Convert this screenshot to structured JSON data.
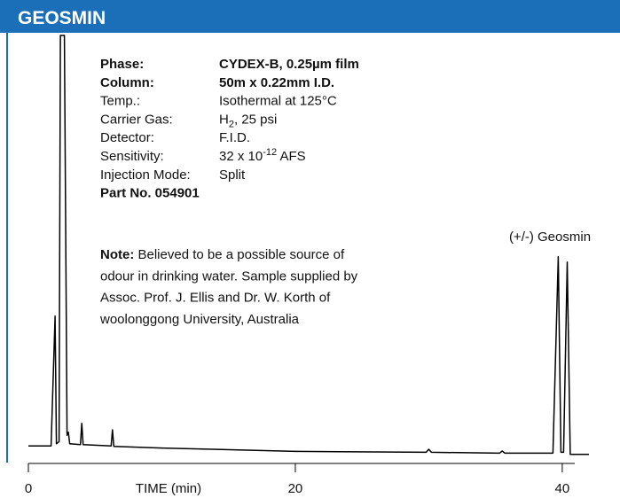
{
  "header": {
    "title": "GEOSMIN"
  },
  "chart_data": {
    "type": "line",
    "x_label": "TIME (min)",
    "xlim": [
      0,
      42
    ],
    "xticks": [
      0,
      20,
      40
    ],
    "ylim": [
      0,
      100
    ],
    "color": "#000000",
    "annotation": "(+/-) Geosmin",
    "series": [
      {
        "name": "Geosmin trace",
        "color": "#000000",
        "x": [
          0,
          1.7,
          2.0,
          2.1,
          2.3,
          2.4,
          2.7,
          2.9,
          3.0,
          3.1,
          3.9,
          4.0,
          4.1,
          6.2,
          6.3,
          6.4,
          10,
          20,
          29.8,
          30,
          30.2,
          35.3,
          35.5,
          35.7,
          39.3,
          39.7,
          39.9,
          40.1,
          40.37,
          40.6,
          42
        ],
        "values": [
          3.5,
          3.5,
          34,
          4,
          4.5,
          100,
          100,
          6,
          6.7,
          4,
          3.8,
          8.8,
          3.8,
          3.5,
          7.3,
          3.4,
          3,
          2.2,
          2,
          2.7,
          2,
          1.8,
          2.3,
          1.8,
          1.8,
          48,
          2,
          2,
          46.7,
          1.5,
          1.5
        ]
      }
    ]
  },
  "info": {
    "rows": [
      {
        "label": "Phase:",
        "value": "CYDEX-B, 0.25µm film",
        "bold": true
      },
      {
        "label": "Column:",
        "value": "50m x 0.22mm I.D.",
        "bold": true
      },
      {
        "label": "Temp.:",
        "value": "Isothermal at 125°C"
      },
      {
        "label": "Carrier Gas:",
        "value": "H",
        "sub": "2",
        "rest": ", 25 psi"
      },
      {
        "label": "Detector:",
        "value": "F.I.D."
      },
      {
        "label": "Sensitivity:",
        "value": "32 x 10",
        "sup": "-12",
        "rest": " AFS"
      },
      {
        "label": "Injection Mode:",
        "value": "Split"
      }
    ],
    "part_no": "Part No. 054901",
    "note_label": "Note:",
    "note_lines": [
      "Believed to be a possible source of",
      "odour in drinking water.  Sample supplied by",
      "Assoc. Prof. J. Ellis and Dr. W. Korth of",
      "woolonggong University, Australia"
    ]
  }
}
